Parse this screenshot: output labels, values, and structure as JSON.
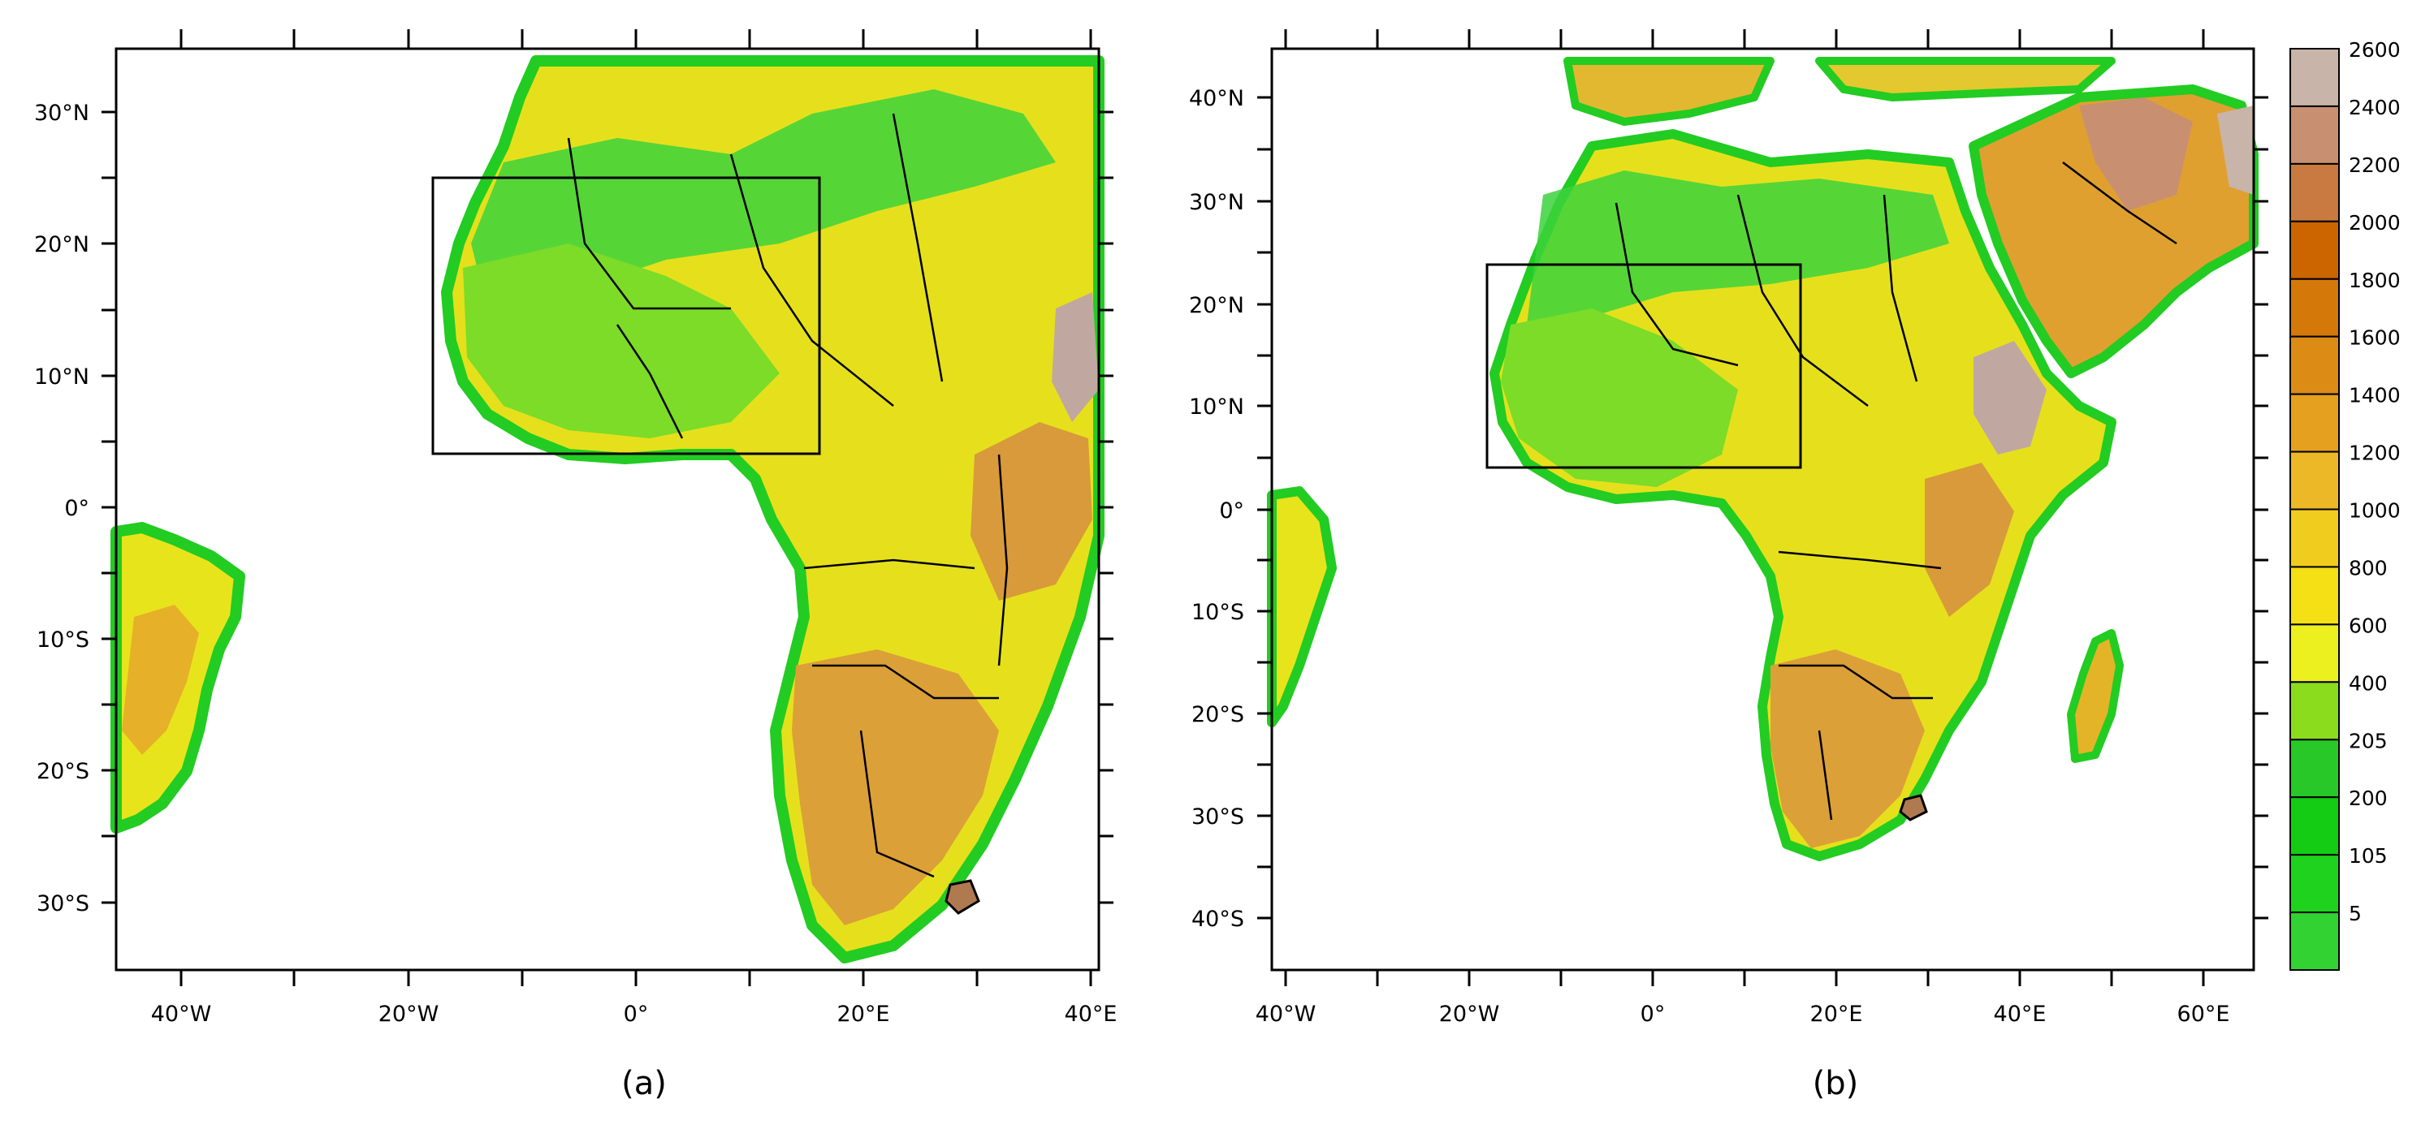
{
  "panels": [
    {
      "id": "a",
      "caption": "(a)",
      "lon_labels": [
        "40°W",
        "20°W",
        "0°",
        "20°E",
        "40°E"
      ],
      "lat_labels": [
        "30°N",
        "20°N",
        "10°N",
        "0°",
        "10°S",
        "20°S",
        "30°S"
      ],
      "domain_box_label": ""
    },
    {
      "id": "b",
      "caption": "(b)",
      "lon_labels": [
        "40°W",
        "20°W",
        "0°",
        "20°E",
        "40°E",
        "60°E"
      ],
      "lat_labels": [
        "40°N",
        "30°N",
        "20°N",
        "10°N",
        "0°",
        "10°S",
        "20°S",
        "30°S",
        "40°S"
      ],
      "domain_box_label": ""
    }
  ],
  "colorbar": {
    "labels": [
      "2600",
      "2400",
      "2200",
      "2000",
      "1800",
      "1600",
      "1400",
      "1200",
      "1000",
      "800",
      "600",
      "400",
      "205",
      "200",
      "105",
      "5"
    ],
    "colors": [
      "#c8b4a8",
      "#c89070",
      "#c87a40",
      "#cc6400",
      "#d4780a",
      "#dc8c14",
      "#e4a01e",
      "#ecb828",
      "#f0cc1e",
      "#f4e014",
      "#ecf01e",
      "#8cdc1e",
      "#28c828",
      "#14cc14",
      "#1ed21e",
      "#32d232"
    ]
  },
  "colors": {
    "ocean": "#ffffff",
    "low_green": "#22cc22",
    "mid_yellow": "#e8e81a",
    "high_orange": "#e0a020",
    "peak_grey": "#c0a8a0",
    "frame": "#000000"
  }
}
